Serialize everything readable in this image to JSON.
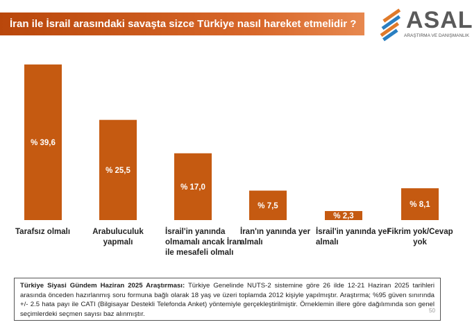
{
  "chart_data": {
    "type": "bar",
    "title": "İran ile İsrail arasındaki savaşta sizce Türkiye nasıl hareket etmelidir ?",
    "categories": [
      "Tarafsız olmalı",
      "Arabuluculuk yapmalı",
      "İsrail'in yanında olmamalı ancak İran ile mesafeli olmalı",
      "İran'ın yanında yer almalı",
      "İsrail'in yanında yer almalı",
      "Fikrim yok/Cevap yok"
    ],
    "values": [
      39.6,
      25.5,
      17.0,
      7.5,
      2.3,
      8.1
    ],
    "value_labels": [
      "% 39,6",
      "% 25,5",
      "% 17,0",
      "% 7,5",
      "% 2,3",
      "% 8,1"
    ],
    "color": "#c55a11"
  },
  "logo": {
    "name": "ASAL",
    "tagline": "ARAŞTIRMA VE DANIŞMANLIK"
  },
  "footnote": {
    "heading": "Türkiye Siyasi Gündem Haziran 2025 Araştırması:",
    "text": "Türkiye Genelinde NUTS-2 sistemine göre 26 ilde 12-21 Haziran 2025 tarihleri arasında önceden hazırlanmış soru formuna bağlı olarak 18 yaş ve üzeri toplamda 2012 kişiyle yapılmıştır. Araştırma; %95 güven sınırında +/- 2.5 hata payı ile CATI (Bilgisayar Destekli Telefonda Anket) yöntemiyle gerçekleştirilmiştir. Örneklemin illere göre dağılımında son genel seçimlerdeki seçmen sayısı baz alınmıştır.",
    "page_number": "50"
  }
}
